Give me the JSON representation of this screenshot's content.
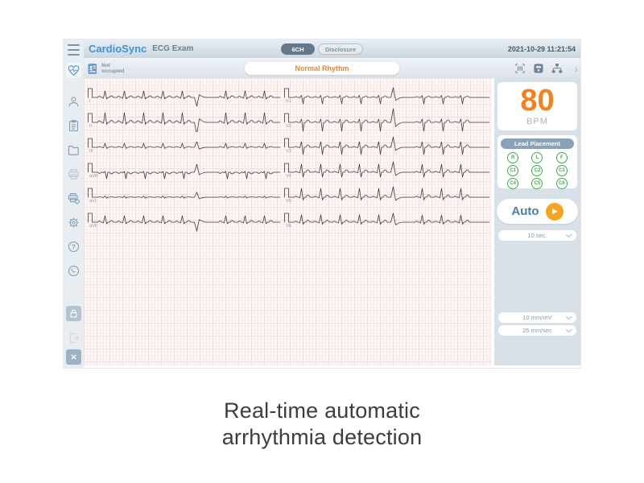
{
  "topbar": {
    "app_name": "CardioSync",
    "exam_title": "ECG Exam",
    "channel_button": "6CH",
    "disclosure_button": "Disclosure",
    "timestamp": "2021-10-29 11:21:54"
  },
  "statusbar": {
    "occupancy": "Not occupied",
    "rhythm_status": "Normal Rhythm"
  },
  "panel": {
    "bpm_value": "80",
    "bpm_unit": "BPM",
    "lead_placement_title": "Lead Placement",
    "electrodes": [
      "R",
      "L",
      "F",
      "C1",
      "C2",
      "C3",
      "C4",
      "C5",
      "C6"
    ],
    "auto_label": "Auto",
    "duration_value": "10 sec.",
    "gain_value": "10 mm/mV",
    "speed_value": "25 mm/sec"
  },
  "ecg": {
    "leads": [
      {
        "label": "I",
        "r": 8,
        "s": 2,
        "q": 1,
        "p": 1.5,
        "t": 2,
        "pvc": -11
      },
      {
        "label": "II",
        "r": 12,
        "s": 2.5,
        "q": 1,
        "p": 2,
        "t": 2.5,
        "pvc": -15
      },
      {
        "label": "III",
        "r": 5,
        "s": 1.5,
        "q": 0.5,
        "p": 1,
        "t": 1,
        "pvc": 7
      },
      {
        "label": "aVR",
        "r": 1,
        "s": 8,
        "q": 0.5,
        "p": -1.5,
        "t": -2,
        "pvc": 10
      },
      {
        "label": "aVL",
        "r": 1.5,
        "s": 1,
        "q": 0.3,
        "p": 0.5,
        "t": 0.5,
        "pvc": 6
      },
      {
        "label": "aVF",
        "r": 8,
        "s": 2,
        "q": 0.8,
        "p": 1.5,
        "t": 2,
        "pvc": -11
      },
      {
        "label": "V1",
        "r": 2.5,
        "s": 8,
        "q": 0.3,
        "p": 1,
        "t": 1.5,
        "pvc": 12
      },
      {
        "label": "V2",
        "r": 4,
        "s": 11,
        "q": 0.3,
        "p": 1,
        "t": 3,
        "pvc": 17
      },
      {
        "label": "V3",
        "r": 7,
        "s": 9,
        "q": 0.5,
        "p": 1,
        "t": 3,
        "pvc": 13
      },
      {
        "label": "V4",
        "r": 10,
        "s": 6,
        "q": 0.7,
        "p": 1.2,
        "t": 3,
        "pvc": 13
      },
      {
        "label": "V5",
        "r": 11,
        "s": 3.5,
        "q": 0.8,
        "p": 1.2,
        "t": 2.5,
        "pvc": 13
      },
      {
        "label": "V6",
        "r": 9,
        "s": 2.5,
        "q": 0.8,
        "p": 1.2,
        "t": 2.5,
        "pvc": 11
      }
    ]
  },
  "caption": {
    "line1": "Real-time automatic",
    "line2": "arrhythmia detection"
  },
  "colors": {
    "accent_orange": "#f5821f",
    "play_orange": "#f7a41d",
    "accent_blue": "#4292d7",
    "electrode_green": "#43a848",
    "panel_bg": "#d8e1e8",
    "pill_slate": "#64788c",
    "grid_pink": "#f2dcdc",
    "trace": "#3c3c3c"
  }
}
